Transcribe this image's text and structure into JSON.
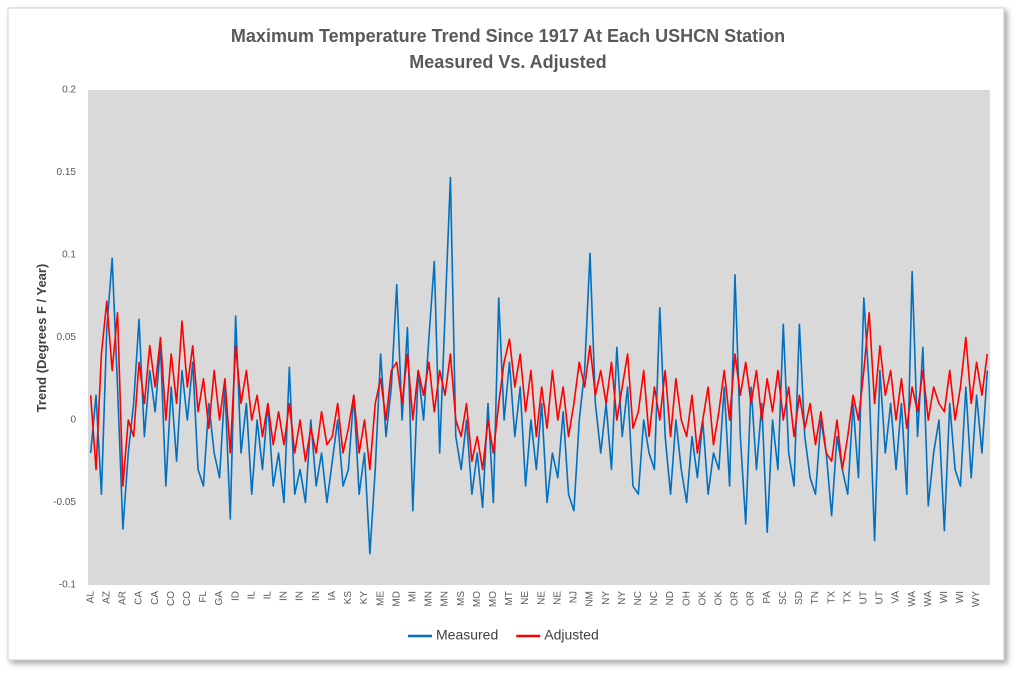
{
  "chart_data": {
    "type": "line",
    "title": "Maximum Temperature Trend Since 1917 At Each USHCN Station",
    "subtitle": "Measured Vs. Adjusted",
    "y_label": "Trend (Degrees F / Year)",
    "categories": [
      "AL",
      null,
      null,
      "AZ",
      null,
      null,
      "AR",
      null,
      null,
      "CA",
      null,
      null,
      "CA",
      null,
      null,
      "CO",
      null,
      null,
      "CO",
      null,
      null,
      "FL",
      null,
      null,
      "GA",
      null,
      null,
      "ID",
      null,
      null,
      "IL",
      null,
      null,
      "IL",
      null,
      null,
      "IN",
      null,
      null,
      "IN",
      null,
      null,
      "IN",
      null,
      null,
      "IA",
      null,
      null,
      "KS",
      null,
      null,
      "KY",
      null,
      null,
      "ME",
      null,
      null,
      "MD",
      null,
      null,
      "MI",
      null,
      null,
      "MN",
      null,
      null,
      "MN",
      null,
      null,
      "MS",
      null,
      null,
      "MO",
      null,
      null,
      "MO",
      null,
      null,
      "MT",
      null,
      null,
      "NE",
      null,
      null,
      "NE",
      null,
      null,
      "NE",
      null,
      null,
      "NJ",
      null,
      null,
      "NM",
      null,
      null,
      "NY",
      null,
      null,
      "NY",
      null,
      null,
      "NC",
      null,
      null,
      "NC",
      null,
      null,
      "ND",
      null,
      null,
      "OH",
      null,
      null,
      "OK",
      null,
      null,
      "OK",
      null,
      null,
      "OR",
      null,
      null,
      "OR",
      null,
      null,
      "PA",
      null,
      null,
      "SC",
      null,
      null,
      "SD",
      null,
      null,
      "TN",
      null,
      null,
      "TX",
      null,
      null,
      "TX",
      null,
      null,
      "UT",
      null,
      null,
      "UT",
      null,
      null,
      "VA",
      null,
      null,
      "WA",
      null,
      null,
      "WA",
      null,
      null,
      "WI",
      null,
      null,
      "WI",
      null,
      null,
      "WY",
      null,
      null
    ],
    "series": [
      {
        "name": "Measured",
        "color": "#0070c0",
        "values": [
          -0.02,
          0.015,
          -0.045,
          0.055,
          0.098,
          0.02,
          -0.066,
          -0.02,
          0.01,
          0.061,
          -0.01,
          0.03,
          0.005,
          0.045,
          -0.04,
          0.02,
          -0.025,
          0.03,
          0.0,
          0.035,
          -0.03,
          -0.04,
          0.01,
          -0.02,
          -0.035,
          0.02,
          -0.06,
          0.063,
          -0.02,
          0.01,
          -0.045,
          0.0,
          -0.03,
          0.01,
          -0.04,
          -0.02,
          -0.05,
          0.032,
          -0.045,
          -0.03,
          -0.05,
          0.0,
          -0.04,
          -0.02,
          -0.05,
          -0.025,
          0.0,
          -0.04,
          -0.03,
          0.015,
          -0.045,
          -0.02,
          -0.081,
          -0.03,
          0.04,
          -0.01,
          0.02,
          0.082,
          0.0,
          0.056,
          -0.055,
          0.03,
          0.0,
          0.05,
          0.096,
          -0.02,
          0.064,
          0.147,
          -0.01,
          -0.03,
          0.0,
          -0.045,
          -0.02,
          -0.053,
          0.01,
          -0.05,
          0.074,
          0.0,
          0.035,
          -0.01,
          0.02,
          -0.04,
          0.0,
          -0.03,
          0.01,
          -0.05,
          -0.02,
          -0.035,
          0.005,
          -0.045,
          -0.055,
          0.0,
          0.03,
          0.101,
          0.01,
          -0.02,
          0.01,
          -0.03,
          0.044,
          -0.01,
          0.02,
          -0.04,
          -0.045,
          0.0,
          -0.02,
          -0.03,
          0.068,
          -0.01,
          -0.045,
          0.0,
          -0.03,
          -0.05,
          -0.01,
          -0.035,
          0.0,
          -0.045,
          -0.02,
          -0.03,
          0.02,
          -0.04,
          0.088,
          -0.01,
          -0.063,
          0.02,
          -0.03,
          0.01,
          -0.068,
          0.0,
          -0.03,
          0.058,
          -0.02,
          -0.04,
          0.058,
          -0.01,
          -0.035,
          -0.045,
          0.0,
          -0.02,
          -0.058,
          -0.01,
          -0.03,
          -0.045,
          0.01,
          -0.035,
          0.074,
          0.02,
          -0.073,
          0.03,
          -0.02,
          0.01,
          -0.03,
          0.01,
          -0.045,
          0.09,
          -0.01,
          0.044,
          -0.052,
          -0.02,
          0.0,
          -0.067,
          0.01,
          -0.03,
          -0.04,
          0.02,
          -0.035,
          0.015,
          -0.02,
          0.03
        ]
      },
      {
        "name": "Adjusted",
        "color": "#ff0000",
        "values": [
          0.015,
          -0.03,
          0.04,
          0.072,
          0.03,
          0.065,
          -0.04,
          0.0,
          -0.01,
          0.035,
          0.01,
          0.045,
          0.02,
          0.05,
          0.0,
          0.04,
          0.01,
          0.06,
          0.02,
          0.045,
          0.005,
          0.025,
          -0.005,
          0.03,
          0.0,
          0.025,
          -0.02,
          0.045,
          0.01,
          0.03,
          0.0,
          0.015,
          -0.01,
          0.01,
          -0.015,
          0.005,
          -0.015,
          0.01,
          -0.02,
          0.0,
          -0.025,
          -0.005,
          -0.02,
          0.005,
          -0.015,
          -0.01,
          0.01,
          -0.02,
          -0.005,
          0.015,
          -0.02,
          0.0,
          -0.03,
          0.01,
          0.025,
          0.0,
          0.03,
          0.035,
          0.01,
          0.04,
          0.0,
          0.03,
          0.015,
          0.035,
          0.005,
          0.03,
          0.015,
          0.04,
          0.0,
          -0.01,
          0.01,
          -0.025,
          -0.01,
          -0.03,
          0.0,
          -0.02,
          0.01,
          0.035,
          0.049,
          0.02,
          0.04,
          0.005,
          0.03,
          -0.01,
          0.02,
          -0.005,
          0.03,
          0.0,
          0.02,
          -0.01,
          0.01,
          0.035,
          0.02,
          0.045,
          0.015,
          0.03,
          0.01,
          0.035,
          0.0,
          0.02,
          0.04,
          -0.005,
          0.005,
          0.03,
          -0.01,
          0.02,
          0.0,
          0.03,
          -0.01,
          0.025,
          0.0,
          -0.01,
          0.015,
          -0.02,
          0.0,
          0.02,
          -0.015,
          0.005,
          0.03,
          0.0,
          0.04,
          0.015,
          0.035,
          0.01,
          0.03,
          0.0,
          0.025,
          0.005,
          0.03,
          0.0,
          0.02,
          -0.01,
          0.015,
          -0.005,
          0.01,
          -0.015,
          0.005,
          -0.02,
          -0.025,
          0.0,
          -0.03,
          -0.01,
          0.015,
          0.0,
          0.03,
          0.065,
          0.01,
          0.045,
          0.015,
          0.03,
          0.0,
          0.025,
          -0.005,
          0.02,
          0.005,
          0.03,
          0.0,
          0.02,
          0.01,
          0.005,
          0.03,
          0.0,
          0.02,
          0.05,
          0.01,
          0.035,
          0.015,
          0.04
        ]
      }
    ],
    "ylim": [
      -0.1,
      0.2
    ],
    "yticks": [
      -0.1,
      -0.05,
      0,
      0.05,
      0.1,
      0.15,
      0.2
    ],
    "grid": false,
    "legend": "bottom",
    "plot_background": "#d9d9d9"
  }
}
